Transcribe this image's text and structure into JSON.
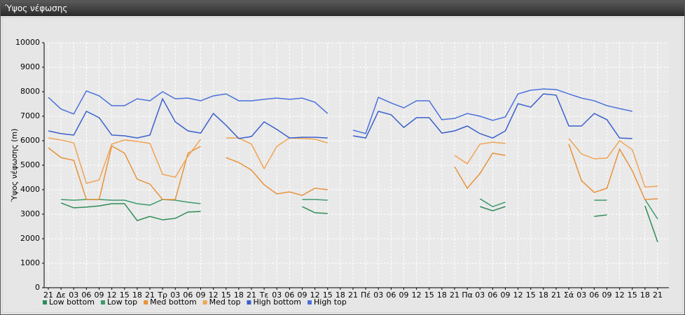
{
  "chart_data": {
    "type": "line",
    "title": "Ύψος νέφωσης",
    "y_label": "Ύψος νέφωσης (m)",
    "categories": [
      "21",
      "Δε",
      "03",
      "06",
      "09",
      "12",
      "15",
      "18",
      "21",
      "Τρ",
      "03",
      "06",
      "09",
      "12",
      "15",
      "18",
      "21",
      "Τε",
      "03",
      "06",
      "09",
      "12",
      "15",
      "18",
      "21",
      "Πέ",
      "03",
      "06",
      "09",
      "12",
      "15",
      "18",
      "21",
      "Πα",
      "03",
      "06",
      "09",
      "12",
      "15",
      "18",
      "21",
      "Σά",
      "03",
      "06",
      "09",
      "12",
      "15",
      "18",
      "21"
    ],
    "ylim": [
      0,
      10000
    ],
    "yticks": [
      0,
      1000,
      2000,
      3000,
      4000,
      5000,
      6000,
      7000,
      8000,
      9000,
      10000
    ],
    "grid": true,
    "series": [
      {
        "name": "Low bottom",
        "color": "#2e8b57",
        "values": [
          null,
          3460,
          3260,
          3290,
          3340,
          3430,
          3430,
          2740,
          2910,
          2770,
          2830,
          3090,
          3110,
          null,
          null,
          null,
          null,
          null,
          null,
          null,
          3310,
          3060,
          3030,
          null,
          null,
          null,
          null,
          null,
          null,
          null,
          null,
          null,
          null,
          null,
          3310,
          3140,
          3310,
          null,
          null,
          null,
          null,
          null,
          null,
          2910,
          2970,
          null,
          null,
          3340,
          1860
        ]
      },
      {
        "name": "Low top",
        "color": "#3c9a6c",
        "values": [
          null,
          3600,
          3570,
          3600,
          3600,
          3570,
          3570,
          3430,
          3370,
          3600,
          3570,
          3490,
          3430,
          null,
          null,
          null,
          null,
          null,
          null,
          null,
          3600,
          3600,
          3570,
          null,
          null,
          null,
          null,
          null,
          null,
          null,
          null,
          null,
          null,
          null,
          3630,
          3310,
          3490,
          null,
          null,
          null,
          null,
          null,
          null,
          3570,
          3570,
          null,
          null,
          3600,
          2800
        ]
      },
      {
        "name": "Med bottom",
        "color": "#e8923a",
        "values": [
          5710,
          5310,
          5200,
          3600,
          3600,
          5790,
          5490,
          4430,
          4230,
          3600,
          3600,
          5490,
          5770,
          null,
          5310,
          5110,
          4800,
          4200,
          3830,
          3910,
          3770,
          4060,
          4000,
          null,
          null,
          null,
          null,
          null,
          null,
          null,
          null,
          null,
          4940,
          4060,
          4660,
          5490,
          5400,
          null,
          null,
          null,
          null,
          5860,
          4370,
          3890,
          4060,
          5660,
          4770,
          3600,
          3630
        ]
      },
      {
        "name": "Med top",
        "color": "#f0a455",
        "values": [
          6110,
          6030,
          5910,
          4260,
          4400,
          5860,
          6030,
          5970,
          5890,
          4630,
          4510,
          5370,
          6060,
          null,
          6110,
          6110,
          5860,
          4860,
          5770,
          6110,
          6090,
          6060,
          5910,
          null,
          null,
          null,
          null,
          null,
          null,
          null,
          null,
          null,
          5400,
          5060,
          5860,
          5940,
          5890,
          null,
          null,
          null,
          null,
          6090,
          5460,
          5260,
          5290,
          6000,
          5630,
          4110,
          4140
        ]
      },
      {
        "name": "High bottom",
        "color": "#3a5fcd",
        "values": [
          6400,
          6290,
          6230,
          7200,
          6940,
          6230,
          6200,
          6110,
          6230,
          7710,
          6770,
          6400,
          6310,
          7110,
          6630,
          6090,
          6170,
          6770,
          6460,
          6110,
          6140,
          6140,
          6110,
          null,
          6200,
          6110,
          7200,
          7060,
          6540,
          6940,
          6940,
          6310,
          6400,
          6600,
          6290,
          6110,
          6400,
          7510,
          7370,
          7910,
          7860,
          6600,
          6600,
          7110,
          6860,
          6110,
          6090,
          null,
          null
        ]
      },
      {
        "name": "High top",
        "color": "#4a70dc",
        "values": [
          7770,
          7290,
          7090,
          8030,
          7830,
          7430,
          7430,
          7710,
          7630,
          8000,
          7710,
          7740,
          7630,
          7830,
          7910,
          7630,
          7630,
          7690,
          7740,
          7690,
          7740,
          7570,
          7110,
          null,
          6430,
          6290,
          7770,
          7540,
          7340,
          7630,
          7630,
          6860,
          6910,
          7110,
          7000,
          6830,
          6970,
          7910,
          8060,
          8110,
          8090,
          7910,
          7740,
          7630,
          7430,
          7310,
          7200,
          null,
          null
        ]
      }
    ]
  }
}
